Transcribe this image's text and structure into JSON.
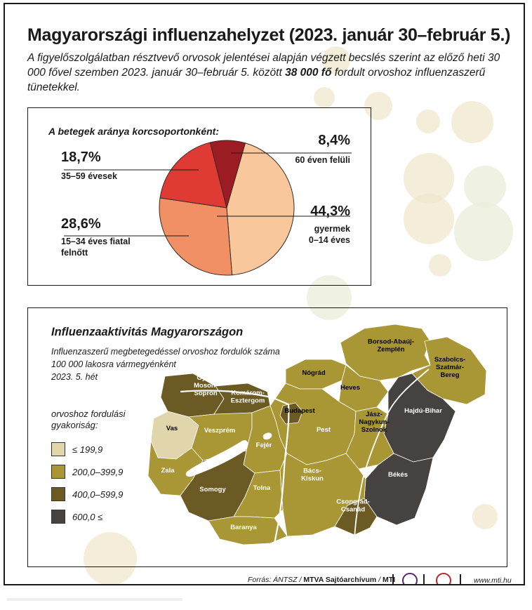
{
  "title": "Magyarországi influenzahelyzet (2023. január 30–február 5.)",
  "subtitle_pre": "A figyelőszolgálatban résztvevő orvosok jelentései alapján végzett becslés szerint az előző heti 30 000 fővel szemben 2023. január 30–február 5. között ",
  "subtitle_bold": "38 000 fő",
  "subtitle_post": " fordult orvoshoz influenzaszerű tünetekkel.",
  "chart_data": [
    {
      "type": "pie",
      "title": "A betegek aránya korcsoportonként:",
      "slices": [
        {
          "pct": "44,3%",
          "value": 44.3,
          "label": "gyermek\n0–14 éves",
          "color": "#f8c79c"
        },
        {
          "pct": "28,6%",
          "value": 28.6,
          "label": "15–34 éves fiatal\nfelnőtt",
          "color": "#f19064"
        },
        {
          "pct": "18,7%",
          "value": 18.7,
          "label": "35–59 évesek",
          "color": "#df3b34"
        },
        {
          "pct": "8,4%",
          "value": 8.4,
          "label": "60 éven felüli",
          "color": "#9b1c22"
        }
      ]
    },
    {
      "type": "choropleth",
      "title": "Influenzaaktivitás Magyarországon",
      "subtitle": "Influenzaszerű megbetegedéssel orvoshoz fordulók száma\n100 000 lakosra vármegyénként\n2023. 5. hét",
      "legend_title": "orvoshoz fordulási\ngyakoriság:",
      "legend": [
        {
          "label": "≤ 199,9",
          "color": "#e1d5ab"
        },
        {
          "label": "200,0–399,9",
          "color": "#a99736"
        },
        {
          "label": "400,0–599,9",
          "color": "#6b5a23"
        },
        {
          "label": "600,0 ≤",
          "color": "#454240"
        }
      ],
      "counties": [
        {
          "name": "Borsod-Abaúj-\nZemplén",
          "level": 1
        },
        {
          "name": "Szabolcs-\nSzatmár-\nBereg",
          "level": 1
        },
        {
          "name": "Nógrád",
          "level": 1
        },
        {
          "name": "Heves",
          "level": 1
        },
        {
          "name": "Győr-\nMoson-\nSopron",
          "level": 2
        },
        {
          "name": "Komárom-\nEsztergom",
          "level": 2
        },
        {
          "name": "Budapest",
          "level": 2
        },
        {
          "name": "Hajdú-Bihar",
          "level": 3
        },
        {
          "name": "Vas",
          "level": 0
        },
        {
          "name": "Veszprém",
          "level": 1
        },
        {
          "name": "Pest",
          "level": 1
        },
        {
          "name": "Jász-\nNagykun-\nSzolnok",
          "level": 1
        },
        {
          "name": "Fejér",
          "level": 1
        },
        {
          "name": "Zala",
          "level": 1
        },
        {
          "name": "Békés",
          "level": 3
        },
        {
          "name": "Somogy",
          "level": 2
        },
        {
          "name": "Bács-\nKiskun",
          "level": 1
        },
        {
          "name": "Tolna",
          "level": 1
        },
        {
          "name": "Csongrád-\nCsanád",
          "level": 2
        },
        {
          "name": "Baranya",
          "level": 1
        }
      ]
    }
  ],
  "footer": {
    "source_prefix": "Forrás: ÁNTSZ / ",
    "source_bold": "MTVA Sajtóarchívum",
    "source_mid": " / ",
    "source_mti": "MTI",
    "url": "www.mti.hu"
  }
}
